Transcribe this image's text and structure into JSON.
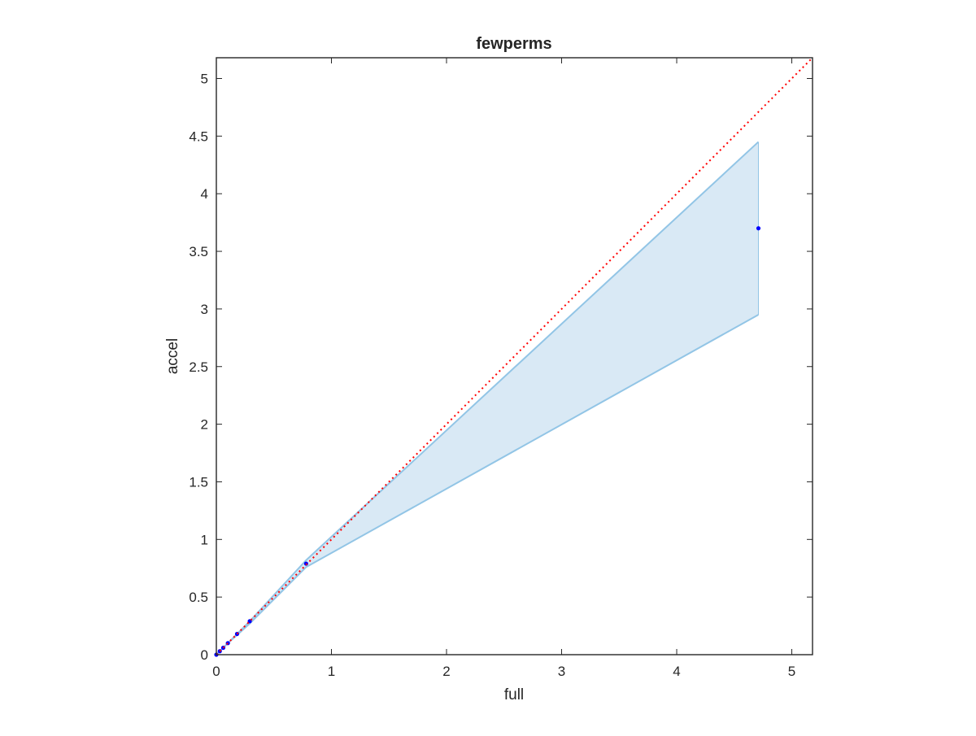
{
  "chart_data": {
    "type": "line",
    "title": "fewperms",
    "xlabel": "full",
    "ylabel": "accel",
    "xlim": [
      0,
      5.18
    ],
    "ylim": [
      0,
      5.18
    ],
    "grid": false,
    "legend": "none",
    "x_ticks": [
      "0",
      "1",
      "2",
      "3",
      "4",
      "5"
    ],
    "y_ticks": [
      "0",
      "0.5",
      "1",
      "1.5",
      "2",
      "2.5",
      "3",
      "3.5",
      "4",
      "4.5",
      "5"
    ],
    "x_tick_values": [
      0,
      1,
      2,
      3,
      4,
      5
    ],
    "y_tick_values": [
      0,
      0.5,
      1,
      1.5,
      2,
      2.5,
      3,
      3.5,
      4,
      4.5,
      5
    ],
    "series": [
      {
        "kind": "band",
        "x": [
          0,
          0.03,
          0.06,
          0.1,
          0.18,
          0.29,
          0.78,
          4.71
        ],
        "upper": [
          0,
          0.03,
          0.06,
          0.1,
          0.18,
          0.29,
          0.82,
          4.45
        ],
        "lower": [
          0,
          0.03,
          0.06,
          0.1,
          0.17,
          0.27,
          0.76,
          2.95
        ],
        "color": "#92c5e6",
        "fill": "#d9e9f5"
      },
      {
        "kind": "points",
        "x": [
          0,
          0.03,
          0.06,
          0.1,
          0.18,
          0.29,
          0.78,
          4.71
        ],
        "y": [
          0,
          0.03,
          0.06,
          0.1,
          0.18,
          0.29,
          0.79,
          3.7
        ],
        "color": "#0000ff"
      },
      {
        "kind": "reference",
        "x": [
          0,
          5.18
        ],
        "y": [
          0,
          5.18
        ],
        "color": "#ff0000",
        "style": "dotted"
      }
    ]
  },
  "colors": {
    "axis": "#262626",
    "background": "#ffffff"
  }
}
